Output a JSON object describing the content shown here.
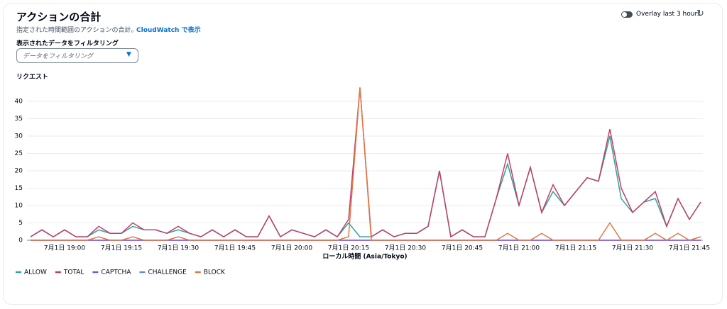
{
  "header": {
    "title": "アクションの合計",
    "subtitle": "指定された時間範囲のアクションの合計。",
    "link": "CloudWatch で表示",
    "toggle": "Overlay last 3 hours"
  },
  "filter": {
    "label": "表示されたデータをフィルタリング",
    "placeholder": "データをフィルタリング"
  },
  "chart_data": {
    "type": "line",
    "title": "リクエスト",
    "x_label": "ローカル時間 (Asia/Tokyo)",
    "categories": [
      null,
      null,
      null,
      "7月1日 19:00",
      null,
      null,
      null,
      null,
      "7月1日 19:15",
      null,
      null,
      null,
      null,
      "7月1日 19:30",
      null,
      null,
      null,
      null,
      "7月1日 19:45",
      null,
      null,
      null,
      null,
      "7月1日 20:00",
      null,
      null,
      null,
      null,
      "7月1日 20:15",
      null,
      null,
      null,
      null,
      "7月1日 20:30",
      null,
      null,
      null,
      null,
      "7月1日 20:45",
      null,
      null,
      null,
      null,
      "7月1日 21:00",
      null,
      null,
      null,
      null,
      "7月1日 21:15",
      null,
      null,
      null,
      null,
      "7月1日 21:30",
      null,
      null,
      null,
      null,
      "7月1日 21:45",
      null
    ],
    "series": [
      {
        "name": "ALLOW",
        "color": "#2ea597",
        "values": [
          1,
          3,
          1,
          3,
          1,
          1,
          3,
          2,
          2,
          4,
          3,
          3,
          2,
          3,
          2,
          1,
          3,
          1,
          3,
          1,
          1,
          7,
          1,
          3,
          2,
          1,
          3,
          1,
          5,
          1,
          1,
          3,
          1,
          2,
          2,
          4,
          20,
          1,
          3,
          1,
          1,
          12,
          22,
          10,
          21,
          8,
          14,
          10,
          14,
          18,
          17,
          30,
          12,
          8,
          11,
          12,
          4,
          12,
          6,
          11
        ]
      },
      {
        "name": "TOTAL",
        "color": "#c33d69",
        "values": [
          1,
          3,
          1,
          3,
          1,
          1,
          4,
          2,
          2,
          5,
          3,
          3,
          2,
          4,
          2,
          1,
          3,
          1,
          3,
          1,
          1,
          7,
          1,
          3,
          2,
          1,
          3,
          1,
          6,
          44,
          1,
          3,
          1,
          2,
          2,
          4,
          20,
          1,
          3,
          1,
          1,
          12,
          25,
          10,
          21,
          8,
          16,
          10,
          14,
          18,
          17,
          32,
          15,
          8,
          11,
          14,
          4,
          12,
          6,
          11
        ]
      },
      {
        "name": "CAPTCHA",
        "color": "#8456ce",
        "values": [
          0,
          0,
          0,
          0,
          0,
          0,
          0,
          0,
          0,
          0,
          0,
          0,
          0,
          0,
          0,
          0,
          0,
          0,
          0,
          0,
          0,
          0,
          0,
          0,
          0,
          0,
          0,
          0,
          0,
          0,
          0,
          0,
          0,
          0,
          0,
          0,
          0,
          0,
          0,
          0,
          0,
          0,
          0,
          0,
          0,
          0,
          0,
          0,
          0,
          0,
          0,
          0,
          0,
          0,
          0,
          0,
          0,
          0,
          0,
          0
        ]
      },
      {
        "name": "CHALLENGE",
        "color": "#688ae8",
        "values": [
          0,
          0,
          0,
          0,
          0,
          0,
          0,
          0,
          0,
          0,
          0,
          0,
          0,
          0,
          0,
          0,
          0,
          0,
          0,
          0,
          0,
          0,
          0,
          0,
          0,
          0,
          0,
          0,
          0,
          0,
          0,
          0,
          0,
          0,
          0,
          0,
          0,
          0,
          0,
          0,
          0,
          0,
          0,
          0,
          0,
          0,
          0,
          0,
          0,
          0,
          0,
          0,
          0,
          0,
          0,
          0,
          0,
          0,
          0,
          0
        ]
      },
      {
        "name": "BLOCK",
        "color": "#e07941",
        "values": [
          0,
          0,
          0,
          0,
          0,
          0,
          1,
          0,
          0,
          1,
          0,
          0,
          0,
          1,
          0,
          0,
          0,
          0,
          0,
          0,
          0,
          0,
          0,
          0,
          0,
          0,
          0,
          0,
          1,
          44,
          0,
          0,
          0,
          0,
          0,
          0,
          0,
          0,
          0,
          0,
          0,
          0,
          2,
          0,
          0,
          2,
          0,
          0,
          0,
          0,
          0,
          5,
          0,
          0,
          0,
          2,
          0,
          2,
          0,
          1
        ]
      }
    ],
    "ylim": [
      0,
      45
    ],
    "yticks": [
      0,
      5,
      10,
      15,
      20,
      25,
      30,
      35,
      40
    ],
    "grid": true
  }
}
